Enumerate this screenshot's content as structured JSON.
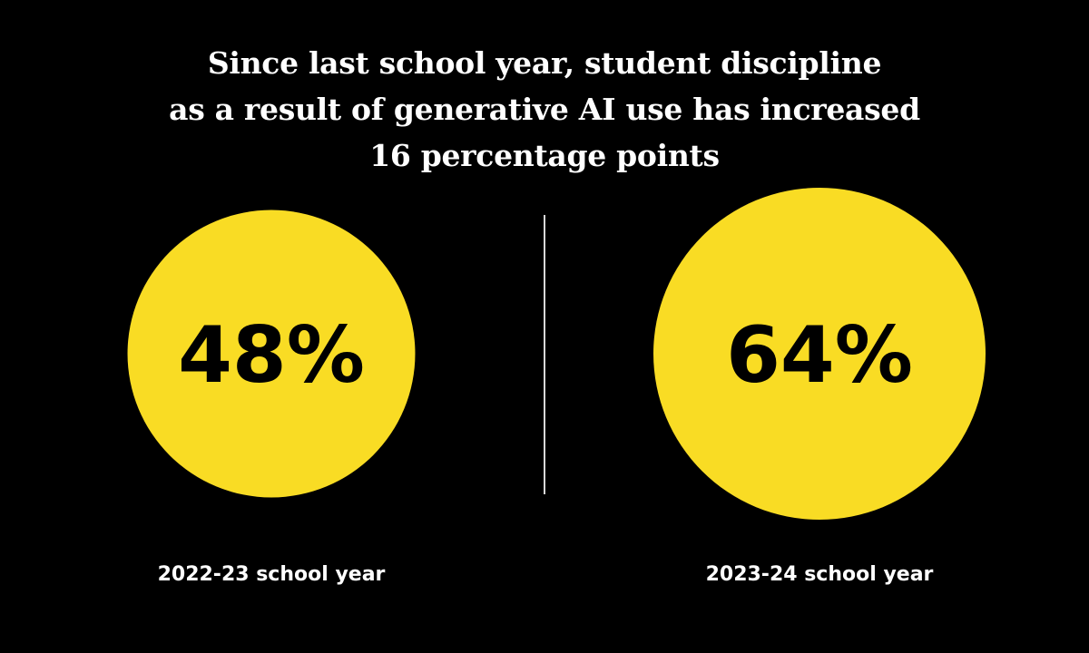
{
  "title": {
    "lines": [
      "Since last school year, student discipline",
      "as a result of generative AI use has increased",
      "16 percentage points"
    ]
  },
  "colors": {
    "background": "#000000",
    "circle": "#f9dc24",
    "text_on_circle": "#000000",
    "text": "#ffffff",
    "divider": "#d8d8d8"
  },
  "chart_data": {
    "type": "proportional-area circles",
    "title": "Since last school year, student discipline as a result of generative AI use has increased 16 percentage points",
    "categories": [
      "2022-23 school year",
      "2023-24 school year"
    ],
    "values": [
      48,
      64
    ],
    "value_labels": [
      "48%",
      "64%"
    ],
    "unit": "%",
    "legend": "none",
    "grid": false
  }
}
